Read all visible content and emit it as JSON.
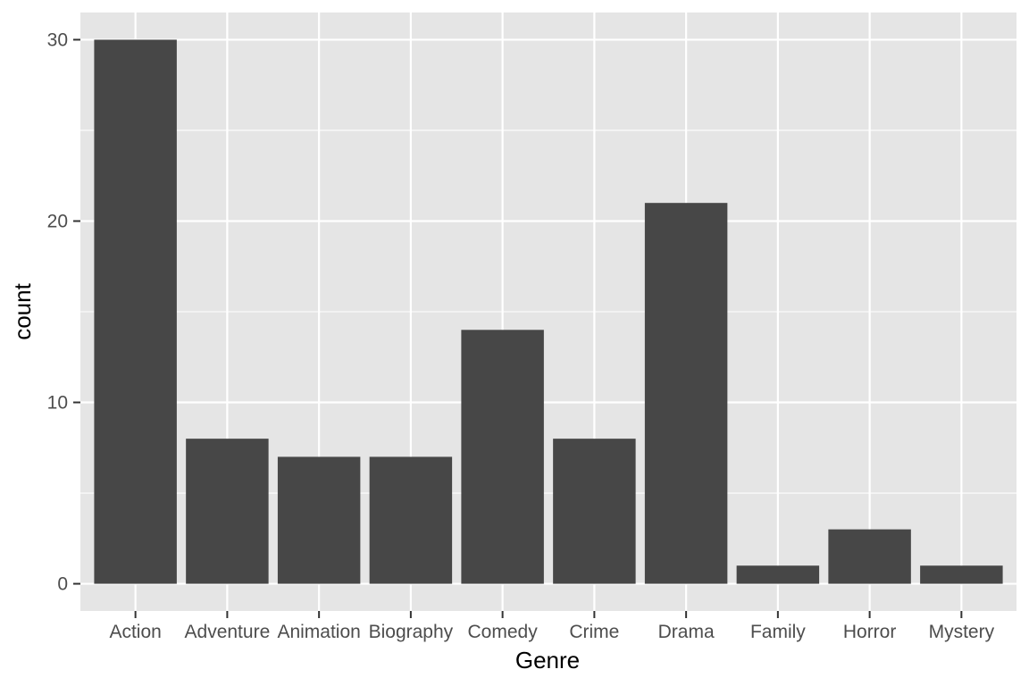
{
  "chart_data": {
    "type": "bar",
    "title": "",
    "xlabel": "Genre",
    "ylabel": "count",
    "categories": [
      "Action",
      "Adventure",
      "Animation",
      "Biography",
      "Comedy",
      "Crime",
      "Drama",
      "Family",
      "Horror",
      "Mystery"
    ],
    "values": [
      30,
      8,
      7,
      7,
      14,
      8,
      21,
      1,
      3,
      1
    ],
    "ylim": [
      -1.5,
      31.5
    ],
    "yticks": [
      0,
      10,
      20,
      30
    ],
    "grid": true,
    "legend": "none"
  },
  "colors": {
    "panel_background": "#e5e5e5",
    "grid_major": "#ffffff",
    "bar_fill": "#474747",
    "tick_text": "#4d4d4d",
    "axis_title": "#000000"
  }
}
